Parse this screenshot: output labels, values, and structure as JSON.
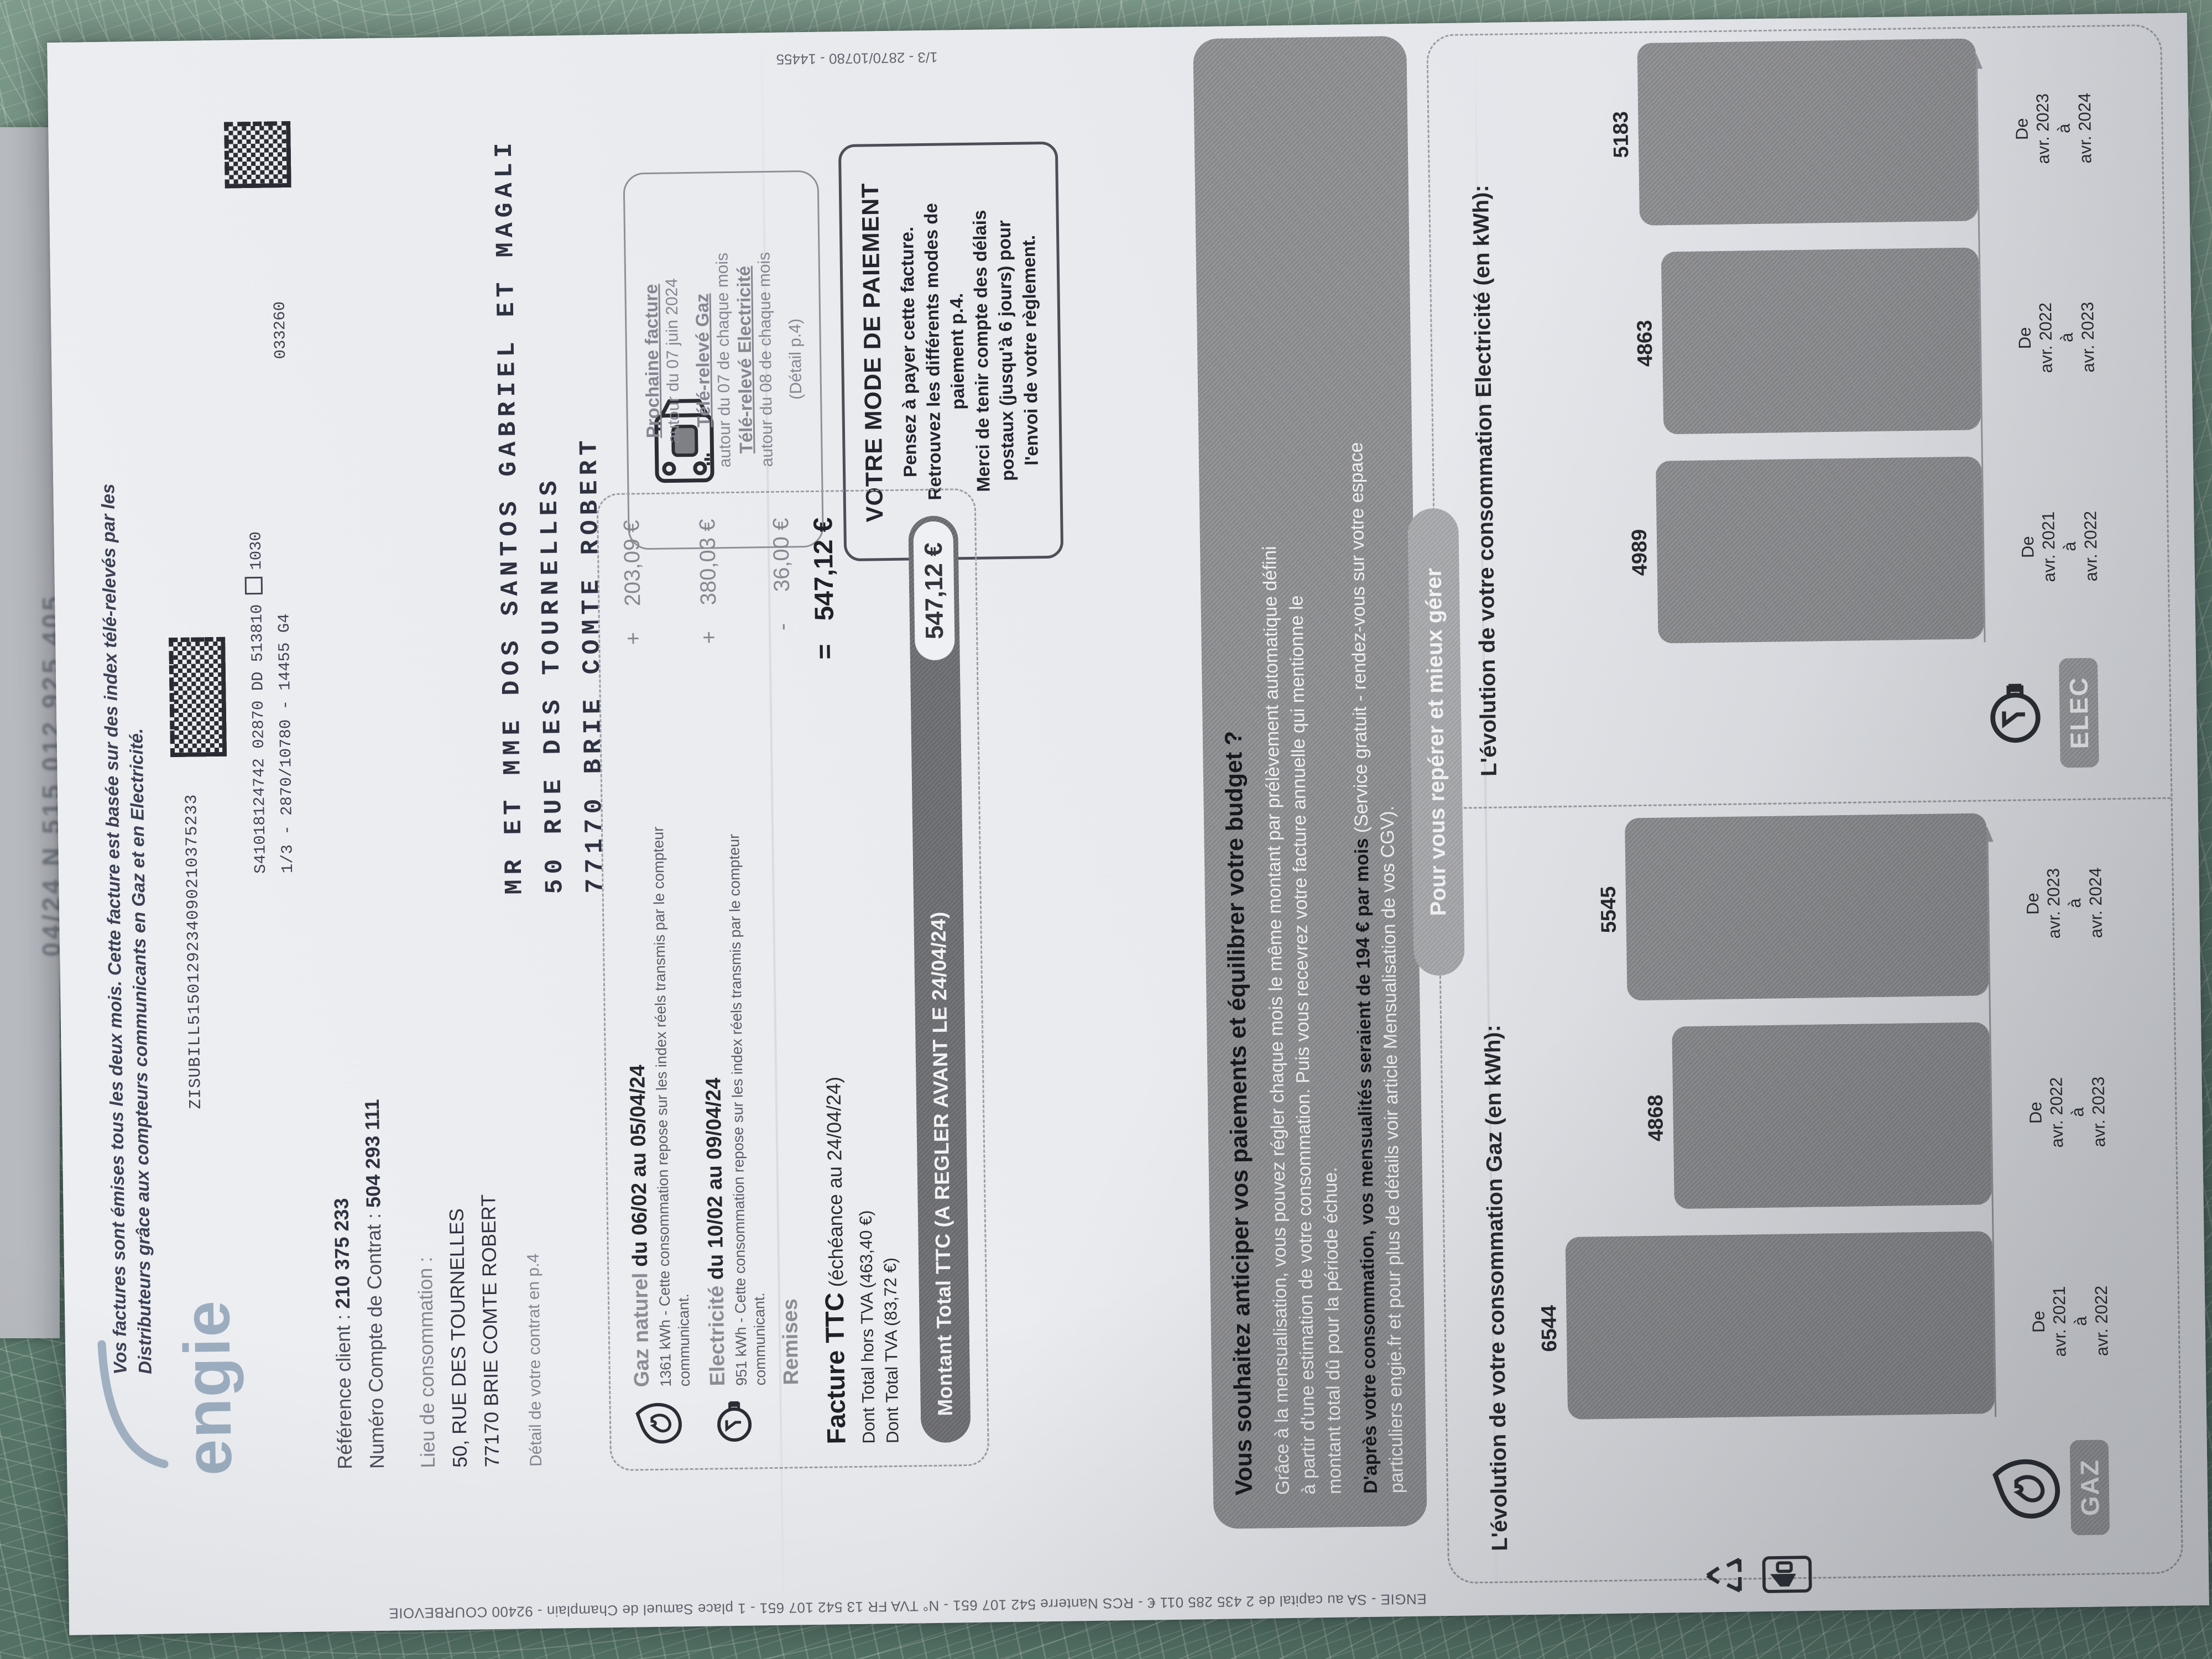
{
  "edge_page_text": "04/24 N 515 012 925 405",
  "accent_colors": {
    "paper": "#e9ebef",
    "fabric_green": "#5d7f70",
    "print_gray": "#8a8d94",
    "ink": "#26282f"
  },
  "doc": {
    "notice_line1": "Vos factures sont émises tous les deux mois. Cette facture est basée sur des index télé-relevés par les",
    "notice_line2": "Distributeurs grâce aux compteurs communicants en Gaz et en Electricité.",
    "logo_text": "engie",
    "print_refs": {
      "zisubill": "ZISUBILL5150129234090210375233",
      "s_line": "S41018124742   02870  DD 513810",
      "s_box_num": "1030",
      "page_ref": "1/3 - 2870/10780 - 14455 G4",
      "batch": "033260",
      "margin_ref": "1/3 - 2870/10780 - 14455"
    },
    "client": {
      "ref_label": "Référence client : ",
      "ref_value": "210 375 233",
      "account_label": "Numéro Compte de Contrat : ",
      "account_value": "504 293 111",
      "place_label": "Lieu de consommation :",
      "address1": "50, RUE DES TOURNELLES",
      "address2": "77170 BRIE COMTE ROBERT",
      "contract_note": "Détail de votre contrat en p.4"
    },
    "recipient": [
      "MR ET MME DOS SANTOS GABRIEL ET MAGALI",
      "50 RUE DES TOURNELLES",
      "77170 BRIE COMTE ROBERT"
    ],
    "next_invoice": {
      "title": "Prochaine facture",
      "line1": "autour du 07 juin 2024",
      "gas_title": "Télé-relevé Gaz",
      "gas_line": "autour du 07 de chaque mois",
      "elec_title": "Télé-relevé Electricité",
      "elec_line": "autour du 08 de chaque mois",
      "detail": "(Détail p.4)"
    },
    "payment_box": {
      "title": "VOTRE MODE DE PAIEMENT",
      "lines": [
        "Pensez à payer cette facture.",
        "Retrouvez les différents modes de",
        "paiement p.4.",
        "Merci de tenir compte des délais",
        "postaux (jusqu'à 6 jours) pour",
        "l'envoi de votre règlement."
      ]
    },
    "invoice": {
      "rows": [
        {
          "name_gray": "Gaz naturel",
          "name_black": " du 06/02 au 05/04/24",
          "desc": "1361 kWh - Cette consommation repose sur les index réels transmis par le compteur",
          "desc2": "communicant.",
          "sign": "+",
          "amount": "203,09 €"
        },
        {
          "name_gray": "Electricité",
          "name_black": " du 10/02 au 09/04/24",
          "desc": "951 kWh - Cette consommation repose sur les index réels transmis par le compteur",
          "desc2": "communicant.",
          "sign": "+",
          "amount": "380,03 €"
        },
        {
          "name_gray": "Remises",
          "name_black": "",
          "sign": "-",
          "amount": "36,00 €"
        }
      ],
      "total": {
        "label_bold": "Facture TTC",
        "label_rest": " (échéance au 24/04/24)",
        "sign": "=",
        "amount": "547,12 €",
        "sub1": "Dont Total hors TVA (463,40 €)",
        "sub2": "Dont Total TVA (83,72 €)"
      },
      "pill": {
        "label": "Montant Total TTC (A REGLER AVANT LE 24/04/24)",
        "amount": "547,12 €"
      }
    },
    "budget": {
      "title": "Vous souhaitez anticiper vos paiements et équilibrer votre budget ?",
      "p1": [
        "Grâce à la mensualisation, vous pouvez régler chaque mois le même montant par prélèvement automatique défini",
        "à partir d'une estimation de votre consommation. Puis vous recevrez votre facture annuelle qui mentionne le",
        "montant total dû pour la période échue."
      ],
      "p2_bold": "D'après votre consommation, vos mensualités seraient de 194 € par mois",
      "p2_rest": " (Service gratuit - rendez-vous sur votre espace",
      "p2_line2": "particuliers engie.fr et pour plus de détails voir article Mensualisation de vos CGV)."
    },
    "orient_pill": "Pour vous repérer et mieux gérer",
    "legal_line": "ENGIE - SA au capital de 2 435 285 011 € - RCS Nanterre 542 107 651 - N° TVA FR 13 542 107 651 - 1 place Samuel de Champlain - 92400 COURBEVOIE"
  },
  "chart_data": [
    {
      "type": "bar",
      "title": "L'évolution de votre consommation Gaz (en kWh):",
      "badge": "GAZ",
      "icon": "flame-icon",
      "categories": [
        [
          "De",
          "avr. 2021",
          "à",
          "avr. 2022"
        ],
        [
          "De",
          "avr. 2022",
          "à",
          "avr. 2023"
        ],
        [
          "De",
          "avr. 2023",
          "à",
          "avr. 2024"
        ]
      ],
      "values": [
        6544,
        4868,
        5545
      ],
      "ylabel": "kWh",
      "grid": false,
      "legend": "none"
    },
    {
      "type": "bar",
      "title": "L'évolution de votre consommation Electricité (en kWh):",
      "badge": "ELEC",
      "icon": "bulb-icon",
      "categories": [
        [
          "De",
          "avr. 2021",
          "à",
          "avr. 2022"
        ],
        [
          "De",
          "avr. 2022",
          "à",
          "avr. 2023"
        ],
        [
          "De",
          "avr. 2023",
          "à",
          "avr. 2024"
        ]
      ],
      "values": [
        4989,
        4863,
        5183
      ],
      "ylabel": "kWh",
      "grid": false,
      "legend": "none"
    }
  ]
}
